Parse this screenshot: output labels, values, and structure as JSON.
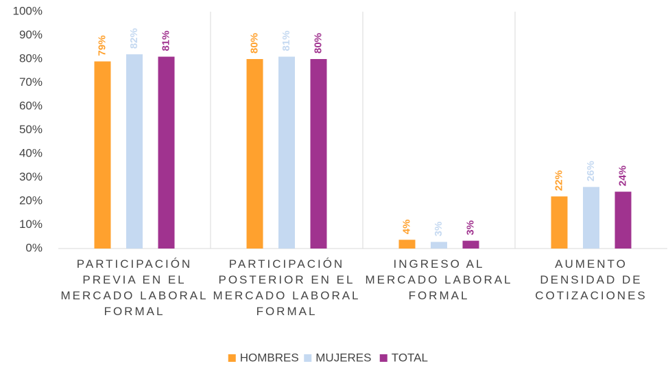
{
  "chart_data": {
    "type": "bar",
    "categories": [
      "PARTICIPACIÓN PREVIA EN EL MERCADO LABORAL FORMAL",
      "PARTICIPACIÓN POSTERIOR EN EL MERCADO LABORAL FORMAL",
      "INGRESO AL MERCADO LABORAL FORMAL",
      "AUMENTO DENSIDAD DE COTIZACIONES"
    ],
    "series": [
      {
        "name": "HOMBRES",
        "color": "#ffa12e",
        "values": [
          79,
          80,
          3.7,
          22
        ],
        "value_labels": [
          "79%",
          "80%",
          "4%",
          "22%"
        ]
      },
      {
        "name": "MUJERES",
        "color": "#c5d9f1",
        "values": [
          82,
          81,
          2.8,
          26
        ],
        "value_labels": [
          "82%",
          "81%",
          "3%",
          "26%"
        ]
      },
      {
        "name": "TOTAL",
        "color": "#a0338f",
        "values": [
          81,
          80,
          3.3,
          24
        ],
        "value_labels": [
          "81%",
          "80%",
          "3%",
          "24%"
        ]
      }
    ],
    "ylim": [
      0,
      100
    ],
    "yticks": [
      {
        "value": 0,
        "label": "0%"
      },
      {
        "value": 10,
        "label": "10%"
      },
      {
        "value": 20,
        "label": "20%"
      },
      {
        "value": 30,
        "label": "30%"
      },
      {
        "value": 40,
        "label": "40%"
      },
      {
        "value": 50,
        "label": "50%"
      },
      {
        "value": 60,
        "label": "60%"
      },
      {
        "value": 70,
        "label": "70%"
      },
      {
        "value": 80,
        "label": "80%"
      },
      {
        "value": 90,
        "label": "90%"
      },
      {
        "value": 100,
        "label": "100%"
      }
    ],
    "grid": false,
    "legend": "bottom"
  }
}
